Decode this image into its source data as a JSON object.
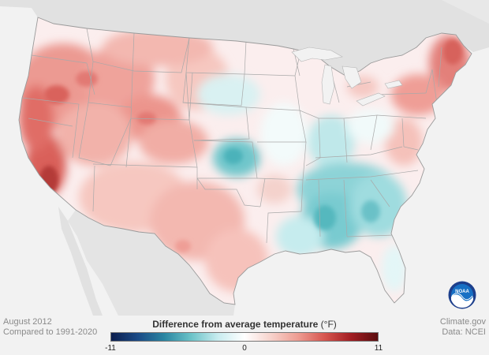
{
  "period": "August 2012",
  "baseline": "Compared to 1991-2020",
  "legend": {
    "title": "Difference from average temperature",
    "unit": "(°F)",
    "min_label": "-11",
    "mid_label": "0",
    "max_label": "11",
    "min": -11,
    "max": 11,
    "colors": [
      "#0c1e4e",
      "#1a4a86",
      "#2a86a2",
      "#6cc3c8",
      "#c8ecef",
      "#ffffff",
      "#f7d2cb",
      "#ee9d93",
      "#d7564f",
      "#a21d22",
      "#5a0c0e"
    ]
  },
  "credit": {
    "site": "Climate.gov",
    "data_source": "Data: NCEI"
  },
  "logo": {
    "text": "NOAA",
    "icon": "noaa-logo-icon"
  },
  "map": {
    "fill_land": "#fdfdfd",
    "fill_water": "#f2f2f2",
    "fill_outside": "#e1e1e1",
    "border_color": "#a8a8a8",
    "warm_color": "#e8877f",
    "cool_color": "#62c3c9"
  }
}
